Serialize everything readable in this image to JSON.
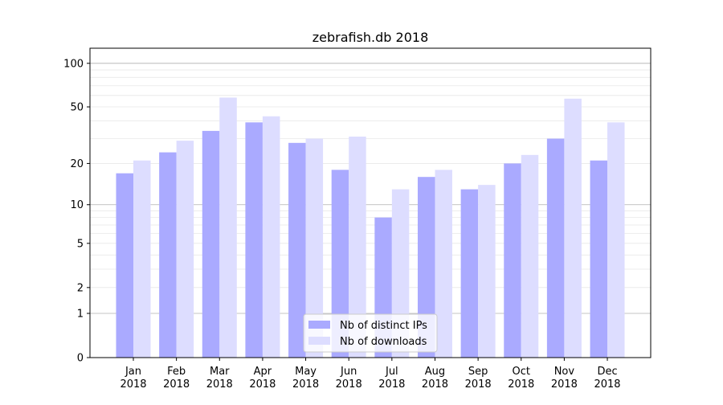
{
  "chart_data": {
    "type": "bar",
    "title": "zebrafish.db 2018",
    "xlabel": "",
    "ylabel": "",
    "yscale": "log(y+1)",
    "ylim": [
      0,
      127
    ],
    "yticks": [
      0,
      1,
      2,
      5,
      10,
      20,
      50,
      100
    ],
    "grid": true,
    "legend_position": "bottom-center",
    "categories": [
      "Jan\n2018",
      "Feb\n2018",
      "Mar\n2018",
      "Apr\n2018",
      "May\n2018",
      "Jun\n2018",
      "Jul\n2018",
      "Aug\n2018",
      "Sep\n2018",
      "Oct\n2018",
      "Nov\n2018",
      "Dec\n2018"
    ],
    "series": [
      {
        "name": "Nb of distinct IPs",
        "color": "#aaaaff",
        "values": [
          17,
          24,
          34,
          39,
          28,
          18,
          8,
          16,
          13,
          20,
          30,
          21
        ]
      },
      {
        "name": "Nb of downloads",
        "color": "#ddddff",
        "values": [
          21,
          29,
          58,
          43,
          30,
          31,
          13,
          18,
          14,
          23,
          57,
          39
        ]
      }
    ]
  }
}
